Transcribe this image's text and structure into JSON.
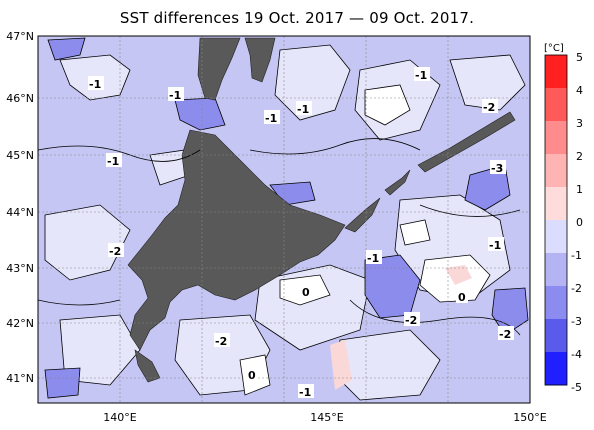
{
  "title": "SST differences 19 Oct. 2017 — 09 Oct. 2017.",
  "lat_labels": [
    "47°N",
    "46°N",
    "45°N",
    "44°N",
    "43°N",
    "42°N",
    "41°N"
  ],
  "lon_labels": [
    "140°E",
    "145°E",
    "150°E"
  ],
  "colorbar": {
    "unit": "[°C]",
    "ticks": [
      "5",
      "4",
      "3",
      "2",
      "1",
      "0",
      "-1",
      "-2",
      "-3",
      "-4",
      "-5"
    ],
    "colors": [
      "#ff2020",
      "#ff5a5a",
      "#ff8c8c",
      "#ffb4b4",
      "#ffdcdc",
      "#ffffff",
      "#dcdcff",
      "#b4b4f5",
      "#8c8cf0",
      "#5a5aeb",
      "#2020ff"
    ]
  },
  "contour_labels": [
    "-1",
    "-1",
    "-1",
    "-1",
    "-1",
    "-2",
    "-1",
    "-1",
    "-3",
    "-2",
    "-1",
    "-1",
    "0",
    "0",
    "-2",
    "-2",
    "-2",
    "0",
    "-1"
  ],
  "colors": {
    "land": "#595959",
    "sea_base": "#c6c6f4"
  }
}
